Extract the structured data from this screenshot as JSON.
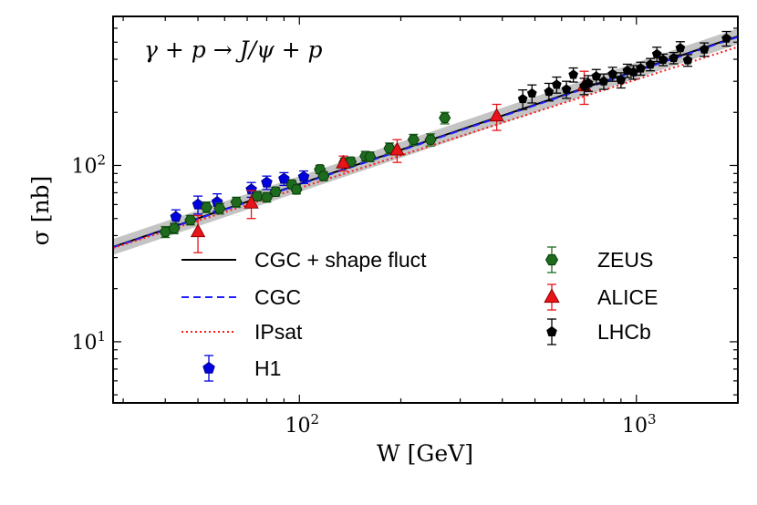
{
  "chart_data": {
    "type": "scatter",
    "scale": "log-log",
    "annotation": "γ + p → J/ψ + p",
    "xlabel": "W [GeV]",
    "ylabel": "σ [nb]",
    "xlim": [
      28,
      2000
    ],
    "ylim": [
      4.5,
      700
    ],
    "x_tick_labels": [
      {
        "value": 100,
        "base": "10",
        "exp": "2"
      },
      {
        "value": 1000,
        "base": "10",
        "exp": "3"
      }
    ],
    "y_tick_labels": [
      {
        "value": 10,
        "base": "10",
        "exp": "1"
      },
      {
        "value": 100,
        "base": "10",
        "exp": "2"
      }
    ],
    "legend": {
      "placement": "lower-center",
      "entries": [
        {
          "label": "CGC + shape fluct",
          "series": "CGC + shape fluct"
        },
        {
          "label": "CGC",
          "series": "CGC"
        },
        {
          "label": "IPsat",
          "series": "IPsat"
        },
        {
          "label": "H1",
          "series": "H1"
        },
        {
          "label": "ZEUS",
          "series": "ZEUS"
        },
        {
          "label": "ALICE",
          "series": "ALICE"
        },
        {
          "label": "LHCb",
          "series": "LHCb"
        }
      ]
    },
    "curves": [
      {
        "name": "CGC + shape fluct",
        "style": "solid",
        "color": "#000000",
        "band_color": "#b0b0b0",
        "x": [
          28,
          2000
        ],
        "y": [
          34.5,
          540
        ],
        "band_half_width": 0.045
      },
      {
        "name": "CGC",
        "style": "dashed",
        "color": "#1f1fff",
        "x": [
          28,
          2000
        ],
        "y": [
          34.3,
          535
        ]
      },
      {
        "name": "IPsat",
        "style": "dotted",
        "color": "#ff1a1a",
        "x": [
          28,
          2000
        ],
        "y": [
          34.0,
          470
        ]
      }
    ],
    "series": [
      {
        "name": "H1",
        "marker": "pentagon",
        "color": "#0000dd",
        "edge": "#000088",
        "points": [
          [
            43,
            51,
            5
          ],
          [
            50,
            60,
            7
          ],
          [
            57,
            62,
            7
          ],
          [
            72,
            73,
            7
          ],
          [
            80,
            80,
            7
          ],
          [
            90,
            84,
            7
          ],
          [
            103,
            86,
            7
          ]
        ]
      },
      {
        "name": "ZEUS",
        "marker": "hexagon",
        "color": "#1e6b1e",
        "edge": "#0a3a0a",
        "points": [
          [
            40,
            42,
            3
          ],
          [
            42.5,
            44,
            3
          ],
          [
            47.5,
            49,
            3
          ],
          [
            53,
            58,
            4
          ],
          [
            58,
            57,
            4
          ],
          [
            65,
            62,
            4
          ],
          [
            75,
            67,
            4
          ],
          [
            80,
            66,
            4
          ],
          [
            85,
            71,
            4
          ],
          [
            95,
            78,
            4
          ],
          [
            98,
            73,
            4
          ],
          [
            115,
            95,
            5
          ],
          [
            118,
            87,
            5
          ],
          [
            136,
            104,
            6
          ],
          [
            142,
            105,
            6
          ],
          [
            157,
            113,
            7
          ],
          [
            162,
            112,
            7
          ],
          [
            185,
            125,
            9
          ],
          [
            218,
            140,
            10
          ],
          [
            245,
            140,
            11
          ],
          [
            270,
            186,
            14
          ]
        ]
      },
      {
        "name": "ALICE",
        "marker": "triangle",
        "color": "#e8141a",
        "edge": "#8a0000",
        "points": [
          [
            50,
            42,
            10
          ],
          [
            72,
            61,
            11
          ],
          [
            135,
            103,
            10
          ],
          [
            195,
            122,
            18
          ],
          [
            385,
            190,
            32
          ],
          [
            700,
            282,
            60
          ]
        ]
      },
      {
        "name": "LHCb",
        "marker": "pentagon",
        "color": "#000000",
        "edge": "#000000",
        "points": [
          [
            460,
            238,
            30
          ],
          [
            490,
            256,
            30
          ],
          [
            550,
            262,
            30
          ],
          [
            580,
            287,
            30
          ],
          [
            620,
            270,
            30
          ],
          [
            650,
            327,
            30
          ],
          [
            700,
            282,
            30
          ],
          [
            720,
            293,
            30
          ],
          [
            760,
            320,
            30
          ],
          [
            800,
            300,
            30
          ],
          [
            850,
            330,
            30
          ],
          [
            900,
            305,
            30
          ],
          [
            940,
            345,
            30
          ],
          [
            980,
            338,
            30
          ],
          [
            1030,
            355,
            30
          ],
          [
            1100,
            374,
            30
          ],
          [
            1150,
            428,
            40
          ],
          [
            1200,
            398,
            30
          ],
          [
            1290,
            407,
            30
          ],
          [
            1350,
            463,
            40
          ],
          [
            1420,
            395,
            30
          ],
          [
            1590,
            455,
            40
          ],
          [
            1850,
            525,
            50
          ]
        ]
      }
    ]
  }
}
